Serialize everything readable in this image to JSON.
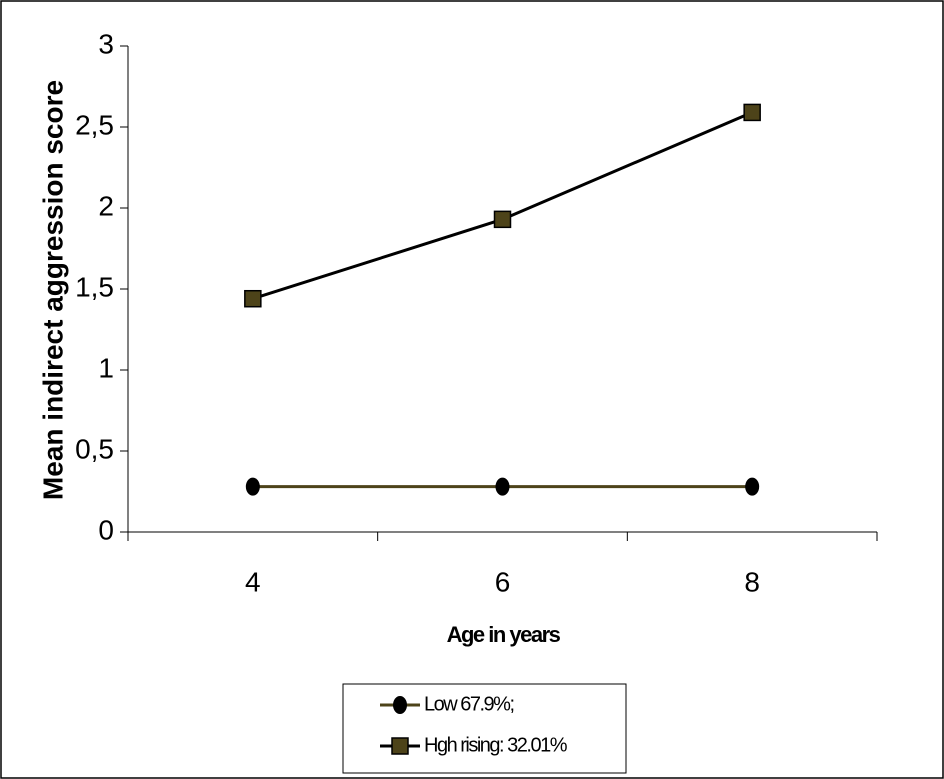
{
  "chart_data": {
    "type": "line",
    "x_label": "Age in years",
    "y_label": "Mean indirect aggression score",
    "categories": [
      "4",
      "6",
      "8"
    ],
    "series": [
      {
        "name": "Low 67.9%;",
        "color": "#4d4319",
        "marker": "circle",
        "marker_color": "#000000",
        "values": [
          0.28,
          0.28,
          0.28
        ]
      },
      {
        "name": "Hgh rising: 32.01%",
        "color": "#000000",
        "marker": "square",
        "marker_color": "#4d4319",
        "values": [
          1.44,
          1.93,
          2.59
        ]
      }
    ],
    "ylim": [
      0,
      3
    ],
    "yticks": [
      0,
      {
        "value": 0.5,
        "label": "0,5"
      },
      1,
      {
        "value": 1.5,
        "label": "1,5"
      },
      2,
      {
        "value": 2.5,
        "label": "2,5"
      },
      3
    ],
    "grid": false,
    "legend": "bottom"
  }
}
